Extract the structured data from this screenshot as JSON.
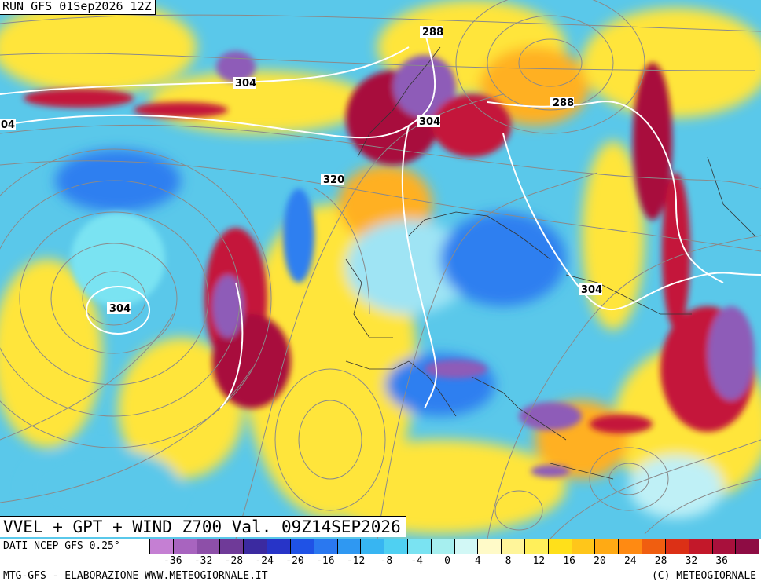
{
  "header": {
    "run_title": "RUN GFS 01Sep2026 12Z",
    "main_title": "VVEL + GPT + WIND Z700 Val. 09Z14SEP2026"
  },
  "footer": {
    "data_source": "DATI NCEP GFS 0.25°",
    "credit_left": "MTG-GFS - ELABORAZIONE WWW.METEOGIORNALE.IT",
    "credit_right": "(C) METEOGIORNALE"
  },
  "contour_labels": [
    {
      "text": "288"
    },
    {
      "text": "304"
    },
    {
      "text": "288"
    },
    {
      "text": "304"
    },
    {
      "text": "04"
    },
    {
      "text": "320"
    },
    {
      "text": "304"
    },
    {
      "text": "304"
    }
  ],
  "legend": {
    "colors": [
      "#c57fd3",
      "#a864bf",
      "#8d4fa8",
      "#6f3a98",
      "#3b2aa0",
      "#2734c8",
      "#1f52e6",
      "#2a78f0",
      "#2f98f2",
      "#37b5f2",
      "#4fd0f2",
      "#7ae3f2",
      "#a6efef",
      "#d2f8f6",
      "#fffac8",
      "#fff59a",
      "#ffef5a",
      "#ffe01a",
      "#ffc61a",
      "#ffaa14",
      "#ff8a12",
      "#f05e10",
      "#dc3016",
      "#c3182a",
      "#a8103c",
      "#8e0c44"
    ],
    "tick_labels": [
      "-36",
      "-32",
      "-28",
      "-24",
      "-20",
      "-16",
      "-12",
      "-8",
      "-4",
      "0",
      "4",
      "8",
      "12",
      "16",
      "20",
      "24",
      "28",
      "32",
      "36"
    ]
  },
  "map": {
    "colors": {
      "background": "#5ac8ea",
      "yellow": "#ffe53a",
      "orange": "#ffb020",
      "red": "#c4183a",
      "purple": "#8e5cb8",
      "blue": "#2f7ff0",
      "white_contour": "#ffffff",
      "streamline": "#8a8a8a",
      "coastline": "#333333"
    }
  }
}
